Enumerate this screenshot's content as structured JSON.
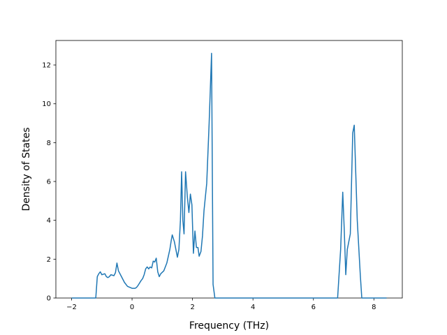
{
  "chart_data": {
    "type": "line",
    "xlabel": "Frequency (THz)",
    "ylabel": "Density of States",
    "x": [
      -2.0,
      -1.2,
      -1.15,
      -1.1,
      -1.05,
      -1.0,
      -0.9,
      -0.85,
      -0.8,
      -0.75,
      -0.7,
      -0.6,
      -0.55,
      -0.5,
      -0.45,
      -0.35,
      -0.25,
      -0.15,
      0.0,
      0.1,
      0.15,
      0.2,
      0.3,
      0.35,
      0.4,
      0.45,
      0.5,
      0.55,
      0.6,
      0.65,
      0.7,
      0.75,
      0.8,
      0.85,
      0.9,
      0.95,
      1.05,
      1.15,
      1.25,
      1.3,
      1.33,
      1.4,
      1.5,
      1.55,
      1.6,
      1.64,
      1.68,
      1.72,
      1.77,
      1.83,
      1.88,
      1.93,
      1.98,
      2.03,
      2.08,
      2.13,
      2.18,
      2.22,
      2.28,
      2.33,
      2.38,
      2.47,
      2.55,
      2.63,
      2.68,
      2.74,
      6.8,
      6.9,
      6.97,
      7.02,
      7.07,
      7.12,
      7.22,
      7.3,
      7.35,
      7.45,
      7.55,
      7.6,
      8.42
    ],
    "values": [
      0,
      0,
      1.1,
      1.25,
      1.35,
      1.2,
      1.25,
      1.1,
      1.05,
      1.1,
      1.2,
      1.15,
      1.3,
      1.8,
      1.4,
      1.1,
      0.8,
      0.6,
      0.5,
      0.5,
      0.55,
      0.65,
      0.9,
      1.0,
      1.2,
      1.5,
      1.6,
      1.5,
      1.6,
      1.55,
      1.9,
      1.85,
      2.05,
      1.35,
      1.1,
      1.25,
      1.4,
      1.8,
      2.5,
      3.0,
      3.25,
      2.9,
      2.1,
      2.5,
      4.0,
      6.5,
      4.0,
      3.3,
      6.5,
      5.2,
      4.4,
      5.35,
      4.8,
      2.3,
      3.45,
      2.6,
      2.6,
      2.15,
      2.4,
      3.2,
      4.5,
      5.9,
      9.0,
      12.6,
      0.7,
      0,
      0,
      2.5,
      5.45,
      3.5,
      1.2,
      2.5,
      3.3,
      8.5,
      8.9,
      4.0,
      1.2,
      0,
      0
    ],
    "color": "#1f77b4",
    "xlim": [
      -2.52,
      8.94
    ],
    "xticks": [
      {
        "value": -2,
        "label": "−2"
      },
      0,
      2,
      4,
      6,
      8
    ],
    "ylim": [
      0,
      13.26
    ],
    "yticks": [
      0,
      2,
      4,
      6,
      8,
      10,
      12
    ],
    "grid": false
  }
}
